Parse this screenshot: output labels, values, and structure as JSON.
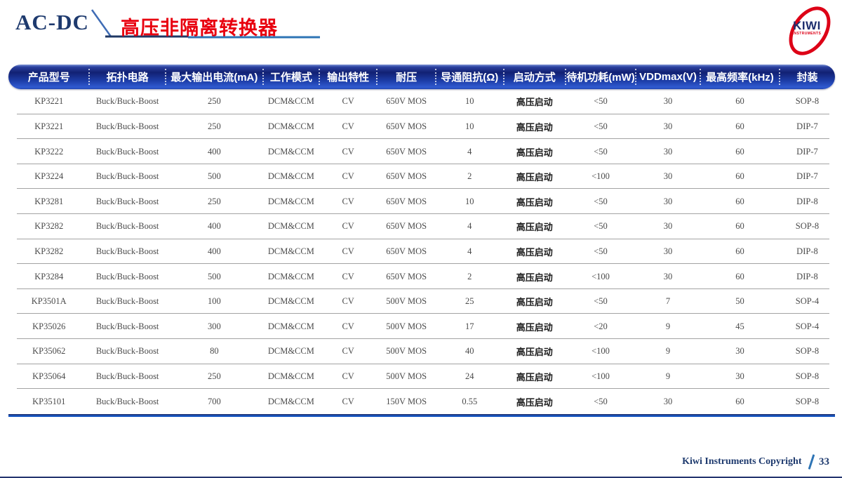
{
  "header": {
    "category": "AC-DC",
    "title": "高压非隔离转换器"
  },
  "logo": {
    "brand": "KIWI",
    "subtitle": "INSTRUMENTS"
  },
  "table": {
    "columns": [
      "产品型号",
      "拓扑电路",
      "最大输出电流(mA)",
      "工作模式",
      "输出特性",
      "耐压",
      "导通阻抗(Ω)",
      "启动方式",
      "待机功耗(mW)",
      "VDDmax(V)",
      "最高频率(kHz)",
      "封装"
    ],
    "rows": [
      [
        "KP3221",
        "Buck/Buck-Boost",
        "250",
        "DCM&CCM",
        "CV",
        "650V MOS",
        "10",
        "高压启动",
        "<50",
        "30",
        "60",
        "SOP-8"
      ],
      [
        "KP3221",
        "Buck/Buck-Boost",
        "250",
        "DCM&CCM",
        "CV",
        "650V MOS",
        "10",
        "高压启动",
        "<50",
        "30",
        "60",
        "DIP-7"
      ],
      [
        "KP3222",
        "Buck/Buck-Boost",
        "400",
        "DCM&CCM",
        "CV",
        "650V MOS",
        "4",
        "高压启动",
        "<50",
        "30",
        "60",
        "DIP-7"
      ],
      [
        "KP3224",
        "Buck/Buck-Boost",
        "500",
        "DCM&CCM",
        "CV",
        "650V MOS",
        "2",
        "高压启动",
        "<100",
        "30",
        "60",
        "DIP-7"
      ],
      [
        "KP3281",
        "Buck/Buck-Boost",
        "250",
        "DCM&CCM",
        "CV",
        "650V MOS",
        "10",
        "高压启动",
        "<50",
        "30",
        "60",
        "DIP-8"
      ],
      [
        "KP3282",
        "Buck/Buck-Boost",
        "400",
        "DCM&CCM",
        "CV",
        "650V MOS",
        "4",
        "高压启动",
        "<50",
        "30",
        "60",
        "SOP-8"
      ],
      [
        "KP3282",
        "Buck/Buck-Boost",
        "400",
        "DCM&CCM",
        "CV",
        "650V MOS",
        "4",
        "高压启动",
        "<50",
        "30",
        "60",
        "DIP-8"
      ],
      [
        "KP3284",
        "Buck/Buck-Boost",
        "500",
        "DCM&CCM",
        "CV",
        "650V MOS",
        "2",
        "高压启动",
        "<100",
        "30",
        "60",
        "DIP-8"
      ],
      [
        "KP3501A",
        "Buck/Buck-Boost",
        "100",
        "DCM&CCM",
        "CV",
        "500V MOS",
        "25",
        "高压启动",
        "<50",
        "7",
        "50",
        "SOP-4"
      ],
      [
        "KP35026",
        "Buck/Buck-Boost",
        "300",
        "DCM&CCM",
        "CV",
        "500V MOS",
        "17",
        "高压启动",
        "<20",
        "9",
        "45",
        "SOP-4"
      ],
      [
        "KP35062",
        "Buck/Buck-Boost",
        "80",
        "DCM&CCM",
        "CV",
        "500V MOS",
        "40",
        "高压启动",
        "<100",
        "9",
        "30",
        "SOP-8"
      ],
      [
        "KP35064",
        "Buck/Buck-Boost",
        "250",
        "DCM&CCM",
        "CV",
        "500V MOS",
        "24",
        "高压启动",
        "<100",
        "9",
        "30",
        "SOP-8"
      ],
      [
        "KP35101",
        "Buck/Buck-Boost",
        "700",
        "DCM&CCM",
        "CV",
        "150V MOS",
        "0.55",
        "高压启动",
        "<50",
        "30",
        "60",
        "SOP-8"
      ]
    ]
  },
  "footer": {
    "copyright": "Kiwi Instruments Copyright",
    "page": "33"
  },
  "colors": {
    "accent_red": "#e8000f",
    "navy": "#1e3a6e",
    "header_blue_dark": "#122173",
    "header_blue_light": "#2f5ad0",
    "underline_dark": "#1f3864",
    "underline_light": "#2e74b5"
  }
}
